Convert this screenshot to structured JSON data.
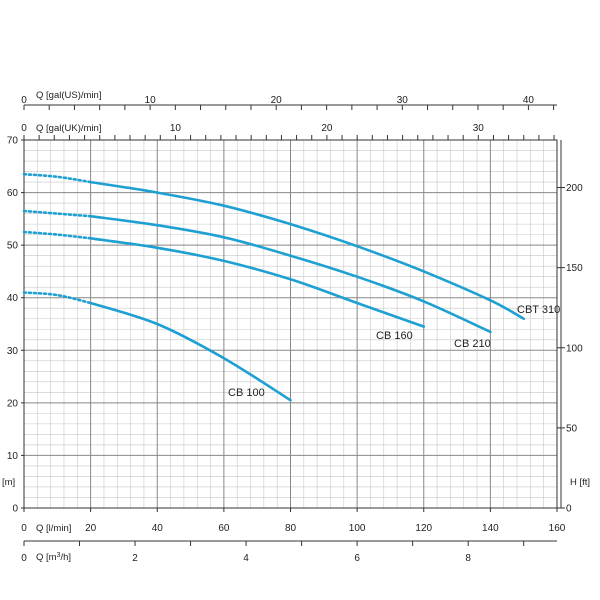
{
  "chart_data": {
    "type": "line",
    "title": "",
    "colors": {
      "curve": "#1ea0d2",
      "grid_major": "#888888",
      "grid_minor": "#c8c8c8",
      "axis": "#333333"
    },
    "grid": true,
    "x_axis": {
      "label": "Q [l/min]",
      "range": [
        0,
        160
      ],
      "ticks": [
        "0",
        "20",
        "40",
        "60",
        "80",
        "100",
        "120",
        "140",
        "160"
      ]
    },
    "x_axis_m3h": {
      "label_prefix": "Q [m",
      "label_sup": "3",
      "label_suffix": "/h]",
      "range": [
        0,
        9.6
      ],
      "ticks": [
        "0",
        "2",
        "4",
        "6",
        "8"
      ]
    },
    "x_axis_us": {
      "label": "Q [gal(US)/min]",
      "range": [
        0,
        42.27
      ],
      "ticks": [
        "0",
        "10",
        "20",
        "30",
        "40"
      ]
    },
    "x_axis_uk": {
      "label": "Q [gal(UK)/min]",
      "range": [
        0,
        35.2
      ],
      "ticks": [
        "0",
        "10",
        "20",
        "30"
      ]
    },
    "y_axis": {
      "label": "[m]",
      "range": [
        0,
        70
      ],
      "ticks": [
        "0",
        "10",
        "20",
        "30",
        "40",
        "50",
        "60",
        "70"
      ]
    },
    "y_axis_right": {
      "label": "H [ft]",
      "range": [
        0,
        229.66
      ],
      "ticks": [
        "0",
        "50",
        "100",
        "150",
        "200"
      ]
    },
    "series": [
      {
        "name": "CB 100",
        "dotted": [
          [
            0,
            41
          ],
          [
            10,
            40.5
          ],
          [
            20,
            39
          ]
        ],
        "solid": [
          [
            20,
            39
          ],
          [
            40,
            35
          ],
          [
            60,
            28.5
          ],
          [
            80,
            20.5
          ]
        ]
      },
      {
        "name": "CB 160",
        "dotted": [
          [
            0,
            52.5
          ],
          [
            10,
            52
          ],
          [
            20,
            51.3
          ]
        ],
        "solid": [
          [
            20,
            51.3
          ],
          [
            40,
            49.5
          ],
          [
            60,
            47
          ],
          [
            80,
            43.5
          ],
          [
            100,
            39
          ],
          [
            120,
            34.5
          ]
        ]
      },
      {
        "name": "CB 210",
        "dotted": [
          [
            0,
            56.5
          ],
          [
            10,
            56
          ],
          [
            20,
            55.5
          ]
        ],
        "solid": [
          [
            20,
            55.5
          ],
          [
            40,
            53.8
          ],
          [
            60,
            51.5
          ],
          [
            80,
            48
          ],
          [
            100,
            44
          ],
          [
            120,
            39.3
          ],
          [
            140,
            33.5
          ]
        ]
      },
      {
        "name": "CBT 310",
        "dotted": [
          [
            0,
            63.5
          ],
          [
            10,
            63
          ],
          [
            20,
            62
          ]
        ],
        "solid": [
          [
            20,
            62
          ],
          [
            40,
            60
          ],
          [
            60,
            57.5
          ],
          [
            80,
            54
          ],
          [
            100,
            49.8
          ],
          [
            120,
            45
          ],
          [
            140,
            39.5
          ],
          [
            150,
            36
          ]
        ]
      }
    ]
  }
}
